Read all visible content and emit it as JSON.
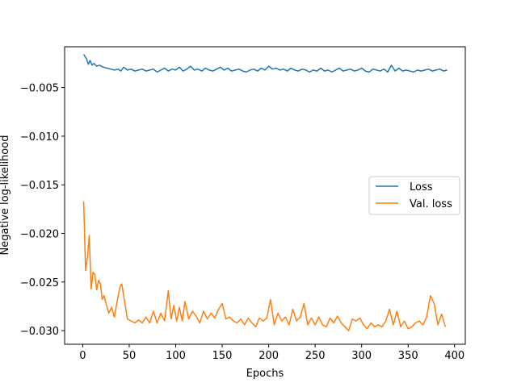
{
  "chart_data": {
    "type": "line",
    "xlabel": "Epochs",
    "ylabel": "Negative log-likelihood",
    "xlim": [
      -19.5,
      411.5
    ],
    "ylim": [
      -0.0314,
      -0.0008
    ],
    "xticks": [
      0,
      50,
      100,
      150,
      200,
      250,
      300,
      350,
      400
    ],
    "xtick_labels": [
      "0",
      "50",
      "100",
      "150",
      "200",
      "250",
      "300",
      "350",
      "400"
    ],
    "yticks": [
      -0.005,
      -0.01,
      -0.015,
      -0.02,
      -0.025,
      -0.03
    ],
    "ytick_labels": [
      "−0.005",
      "−0.010",
      "−0.015",
      "−0.020",
      "−0.025",
      "−0.030"
    ],
    "grid": false,
    "legend_position": "center-right",
    "series": [
      {
        "name": "Loss",
        "color": "#1f77b4",
        "x": [
          1,
          4,
          6,
          8,
          10,
          12,
          15,
          18,
          22,
          26,
          30,
          34,
          38,
          41,
          44,
          48,
          52,
          56,
          60,
          64,
          68,
          72,
          76,
          80,
          84,
          88,
          92,
          96,
          100,
          104,
          108,
          112,
          116,
          120,
          124,
          128,
          132,
          136,
          140,
          144,
          148,
          152,
          156,
          160,
          164,
          168,
          172,
          176,
          180,
          184,
          188,
          192,
          196,
          200,
          204,
          208,
          212,
          216,
          220,
          224,
          228,
          232,
          236,
          240,
          244,
          248,
          252,
          256,
          260,
          264,
          268,
          272,
          276,
          280,
          284,
          288,
          292,
          296,
          300,
          304,
          308,
          312,
          316,
          320,
          324,
          328,
          332,
          336,
          340,
          344,
          348,
          352,
          356,
          360,
          364,
          368,
          372,
          376,
          380,
          384,
          388,
          392
        ],
        "values": [
          -0.0016,
          -0.002,
          -0.0026,
          -0.0022,
          -0.0027,
          -0.0025,
          -0.0028,
          -0.0027,
          -0.0029,
          -0.003,
          -0.0031,
          -0.0032,
          -0.0031,
          -0.0033,
          -0.0029,
          -0.0032,
          -0.0031,
          -0.0033,
          -0.0032,
          -0.0031,
          -0.0033,
          -0.0032,
          -0.0031,
          -0.0034,
          -0.0032,
          -0.003,
          -0.0033,
          -0.0031,
          -0.0032,
          -0.0029,
          -0.0033,
          -0.0031,
          -0.0028,
          -0.0032,
          -0.0031,
          -0.0033,
          -0.003,
          -0.0032,
          -0.0033,
          -0.0031,
          -0.0029,
          -0.0032,
          -0.003,
          -0.0033,
          -0.0032,
          -0.0031,
          -0.0033,
          -0.0034,
          -0.0032,
          -0.0031,
          -0.0033,
          -0.003,
          -0.0032,
          -0.0028,
          -0.0031,
          -0.003,
          -0.0032,
          -0.0031,
          -0.0033,
          -0.003,
          -0.0032,
          -0.0033,
          -0.0031,
          -0.0032,
          -0.0034,
          -0.0032,
          -0.0033,
          -0.003,
          -0.0033,
          -0.0032,
          -0.0034,
          -0.0032,
          -0.003,
          -0.0033,
          -0.0032,
          -0.0031,
          -0.0033,
          -0.0032,
          -0.003,
          -0.0033,
          -0.0034,
          -0.0031,
          -0.0032,
          -0.0033,
          -0.0031,
          -0.0034,
          -0.0027,
          -0.0033,
          -0.003,
          -0.0033,
          -0.0032,
          -0.0033,
          -0.0034,
          -0.0032,
          -0.0033,
          -0.0032,
          -0.0031,
          -0.0033,
          -0.0032,
          -0.0031,
          -0.0033,
          -0.0032
        ]
      },
      {
        "name": "Val. loss",
        "color": "#ff7f0e",
        "x": [
          1,
          3,
          5,
          7,
          9,
          11,
          13,
          15,
          17,
          19,
          21,
          23,
          25,
          28,
          31,
          34,
          37,
          40,
          42,
          45,
          48,
          52,
          56,
          60,
          64,
          68,
          72,
          76,
          80,
          84,
          88,
          92,
          95,
          98,
          101,
          104,
          107,
          110,
          114,
          118,
          122,
          126,
          130,
          134,
          138,
          142,
          146,
          150,
          154,
          158,
          162,
          166,
          170,
          174,
          178,
          182,
          186,
          190,
          194,
          198,
          202,
          206,
          210,
          214,
          218,
          222,
          226,
          230,
          234,
          238,
          242,
          246,
          250,
          254,
          258,
          262,
          266,
          270,
          274,
          278,
          282,
          286,
          290,
          294,
          298,
          302,
          306,
          310,
          314,
          318,
          322,
          326,
          330,
          334,
          338,
          342,
          346,
          350,
          354,
          358,
          362,
          366,
          370,
          374,
          378,
          382,
          386,
          390
        ],
        "values": [
          -0.0167,
          -0.0238,
          -0.0225,
          -0.0202,
          -0.0257,
          -0.024,
          -0.0242,
          -0.0258,
          -0.0248,
          -0.0252,
          -0.0268,
          -0.0264,
          -0.0272,
          -0.0282,
          -0.0276,
          -0.0286,
          -0.027,
          -0.0255,
          -0.0252,
          -0.027,
          -0.0288,
          -0.029,
          -0.0292,
          -0.0289,
          -0.0292,
          -0.0286,
          -0.0292,
          -0.028,
          -0.0292,
          -0.0282,
          -0.029,
          -0.0259,
          -0.0288,
          -0.0274,
          -0.029,
          -0.0276,
          -0.029,
          -0.027,
          -0.0288,
          -0.028,
          -0.0285,
          -0.0292,
          -0.028,
          -0.0288,
          -0.0282,
          -0.0287,
          -0.0278,
          -0.0272,
          -0.0288,
          -0.0286,
          -0.029,
          -0.0292,
          -0.0288,
          -0.0294,
          -0.0287,
          -0.0292,
          -0.0296,
          -0.0287,
          -0.029,
          -0.0287,
          -0.0268,
          -0.0294,
          -0.0282,
          -0.029,
          -0.0286,
          -0.0294,
          -0.0278,
          -0.029,
          -0.0286,
          -0.0272,
          -0.0294,
          -0.0287,
          -0.0294,
          -0.0286,
          -0.0294,
          -0.0296,
          -0.0287,
          -0.0292,
          -0.0285,
          -0.0292,
          -0.0296,
          -0.03,
          -0.0288,
          -0.029,
          -0.0287,
          -0.0294,
          -0.0298,
          -0.0292,
          -0.0296,
          -0.0294,
          -0.0296,
          -0.029,
          -0.0278,
          -0.0294,
          -0.028,
          -0.0296,
          -0.029,
          -0.0298,
          -0.0296,
          -0.0292,
          -0.029,
          -0.0294,
          -0.0286,
          -0.0264,
          -0.0272,
          -0.0294,
          -0.0283,
          -0.0296
        ]
      }
    ]
  }
}
